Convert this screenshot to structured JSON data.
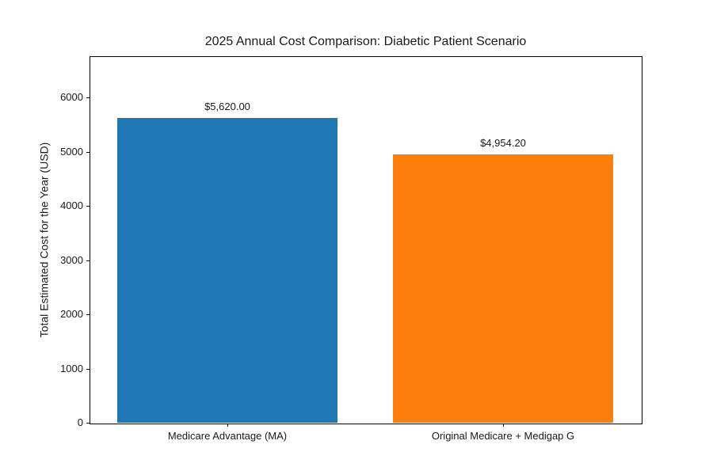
{
  "chart_data": {
    "type": "bar",
    "title": "2025 Annual Cost Comparison: Diabetic Patient Scenario",
    "ylabel": "Total Estimated Cost for the Year (USD)",
    "xlabel": "",
    "categories": [
      "Medicare Advantage (MA)",
      "Original Medicare + Medigap G"
    ],
    "values": [
      5620.0,
      4954.2
    ],
    "value_labels": [
      "$5,620.00",
      "$4,954.20"
    ],
    "bar_colors": [
      "#1f77b4",
      "#ff7f0e"
    ],
    "ylim": [
      0,
      6760
    ],
    "yticks": [
      0,
      1000,
      2000,
      3000,
      4000,
      5000,
      6000
    ],
    "grid": false,
    "bar_width_fraction": 0.8,
    "background_color": "#ffffff",
    "text_color": "#1a1a1a"
  }
}
